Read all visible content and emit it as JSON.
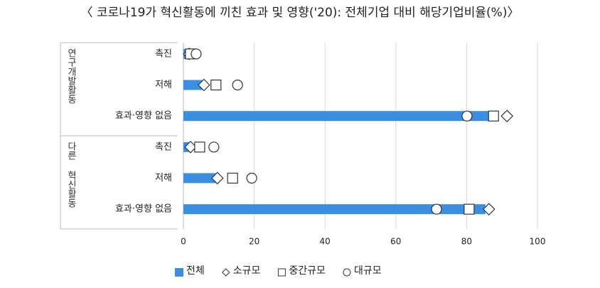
{
  "chart_data": {
    "type": "bar",
    "orientation": "horizontal",
    "title": "〈 코로나19가 혁신활동에 끼친 효과 및 영향('20): 전체기업 대비 해당기업비율(%)〉",
    "group_labels": [
      "연구개발활동",
      "다른 혁신활동"
    ],
    "categories": [
      "촉진",
      "저해",
      "효과·영향 없음",
      "촉진",
      "저해",
      "효과·영향 없음"
    ],
    "series": [
      {
        "name": "전체",
        "marker": "bar",
        "color": "#3c8fe0",
        "values": [
          1,
          5.6,
          89,
          2.4,
          10,
          85.3
        ]
      },
      {
        "name": "소규모",
        "marker": "diamond",
        "color": "#333333",
        "values": [
          1.6,
          5.8,
          91.4,
          2,
          9.6,
          86.3
        ]
      },
      {
        "name": "중간규모",
        "marker": "square",
        "color": "#333333",
        "values": [
          2,
          9.2,
          87.6,
          4.6,
          13.9,
          80.7
        ]
      },
      {
        "name": "대규모",
        "marker": "circle",
        "color": "#333333",
        "values": [
          3.6,
          15.3,
          80.1,
          8.6,
          19.3,
          71.5
        ]
      }
    ],
    "xlim": [
      0,
      100
    ],
    "xticks": [
      0,
      20,
      40,
      60,
      80,
      100
    ],
    "grid": true
  }
}
